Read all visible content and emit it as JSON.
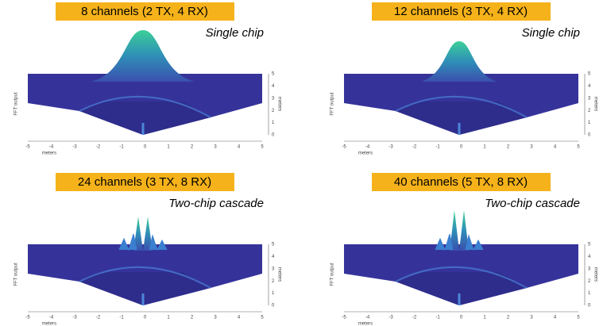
{
  "panels": [
    {
      "label": "8 channels (2 TX, 4 RX)",
      "subtitle": "Single chip",
      "x_ticks": [
        -5,
        -4,
        -3,
        -2,
        -1,
        0,
        1,
        2,
        3,
        4,
        5
      ],
      "x_axis_label": "meters",
      "y_ticks": [
        0,
        1,
        2,
        3,
        4,
        5
      ],
      "y_axis_label": "meters",
      "z_axis_label": "FFT output"
    },
    {
      "label": "12 channels (3 TX, 4 RX)",
      "subtitle": "Single chip",
      "x_ticks": [
        -5,
        -4,
        -3,
        -2,
        -1,
        0,
        1,
        2,
        3,
        4,
        5
      ],
      "x_axis_label": "meters",
      "y_ticks": [
        0,
        1,
        2,
        3,
        4,
        5
      ],
      "y_axis_label": "meters",
      "z_axis_label": "FFT output"
    },
    {
      "label": "24 channels (3 TX, 8 RX)",
      "subtitle": "Two-chip cascade",
      "x_ticks": [
        -5,
        -4,
        -3,
        -2,
        -1,
        0,
        1,
        2,
        3,
        4,
        5
      ],
      "x_axis_label": "meters",
      "y_ticks": [
        0,
        1,
        2,
        3,
        4,
        5
      ],
      "y_axis_label": "meters",
      "z_axis_label": "FFT output"
    },
    {
      "label": "40 channels (5 TX, 8 RX)",
      "subtitle": "Two-chip cascade",
      "x_ticks": [
        -5,
        -4,
        -3,
        -2,
        -1,
        0,
        1,
        2,
        3,
        4,
        5
      ],
      "x_axis_label": "meters",
      "y_ticks": [
        0,
        1,
        2,
        3,
        4,
        5
      ],
      "y_axis_label": "meters",
      "z_axis_label": "FFT output"
    }
  ]
}
